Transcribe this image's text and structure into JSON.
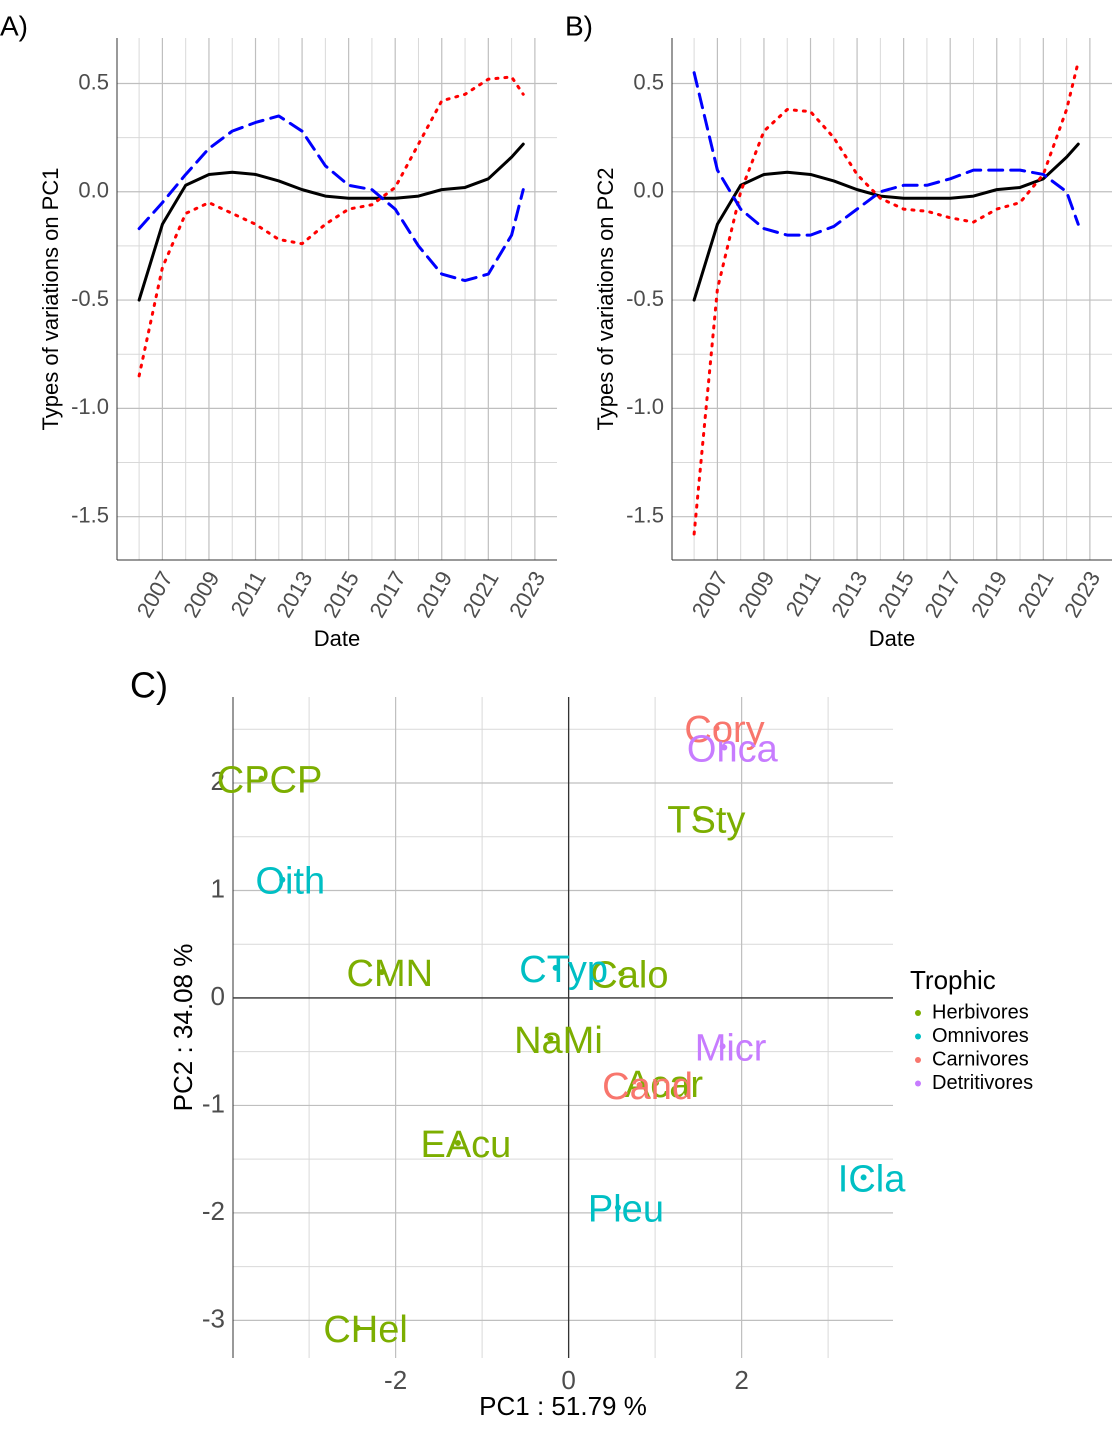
{
  "chart_data": [
    {
      "type": "line",
      "panel": "A)",
      "xlabel": "Date",
      "ylabel": "Types of variations on PC1",
      "x": [
        2006,
        2007,
        2008,
        2009,
        2010,
        2011,
        2012,
        2013,
        2014,
        2015,
        2016,
        2017,
        2018,
        2019,
        2020,
        2021,
        2022,
        2022.5
      ],
      "series": [
        {
          "color": "#000000",
          "dash": "solid",
          "values": [
            -0.5,
            -0.15,
            0.03,
            0.08,
            0.09,
            0.08,
            0.05,
            0.01,
            -0.02,
            -0.03,
            -0.03,
            -0.03,
            -0.02,
            0.01,
            0.02,
            0.06,
            0.16,
            0.22
          ]
        },
        {
          "color": "#ff0000",
          "dash": "dotted",
          "values": [
            -0.85,
            -0.35,
            -0.1,
            -0.05,
            -0.1,
            -0.15,
            -0.22,
            -0.24,
            -0.15,
            -0.08,
            -0.06,
            0.02,
            0.22,
            0.42,
            0.45,
            0.52,
            0.53,
            0.45
          ]
        },
        {
          "color": "#0000ff",
          "dash": "dashed",
          "values": [
            -0.17,
            -0.05,
            0.08,
            0.2,
            0.28,
            0.32,
            0.35,
            0.28,
            0.12,
            0.03,
            0.01,
            -0.08,
            -0.25,
            -0.38,
            -0.41,
            -0.38,
            -0.2,
            0.01
          ]
        }
      ],
      "xlim": [
        2005.05,
        2023.95
      ],
      "xticks": [
        2007,
        2009,
        2011,
        2013,
        2015,
        2017,
        2019,
        2021,
        2023
      ],
      "ylim": [
        -1.7,
        0.71
      ],
      "yticks": [
        -1.5,
        {
          "value": -1,
          "label": "-1.0"
        },
        -0.5,
        {
          "value": 0,
          "label": "0.0"
        },
        0.5
      ],
      "grid": true
    },
    {
      "type": "line",
      "panel": "B)",
      "xlabel": "Date",
      "ylabel": "Types of variations on PC2",
      "x": [
        2006,
        2007,
        2008,
        2009,
        2010,
        2011,
        2012,
        2013,
        2014,
        2015,
        2016,
        2017,
        2018,
        2019,
        2020,
        2021,
        2022,
        2022.5
      ],
      "series": [
        {
          "color": "#000000",
          "dash": "solid",
          "values": [
            -0.5,
            -0.15,
            0.03,
            0.08,
            0.09,
            0.08,
            0.05,
            0.01,
            -0.02,
            -0.03,
            -0.03,
            -0.03,
            -0.02,
            0.01,
            0.02,
            0.06,
            0.16,
            0.22
          ]
        },
        {
          "color": "#ff0000",
          "dash": "dotted",
          "values": [
            -1.58,
            -0.45,
            0.0,
            0.28,
            0.38,
            0.37,
            0.25,
            0.08,
            -0.03,
            -0.08,
            -0.09,
            -0.12,
            -0.14,
            -0.08,
            -0.05,
            0.08,
            0.38,
            0.6
          ]
        },
        {
          "color": "#0000ff",
          "dash": "dashed",
          "values": [
            0.55,
            0.1,
            -0.08,
            -0.17,
            -0.2,
            -0.2,
            -0.16,
            -0.08,
            0.0,
            0.03,
            0.03,
            0.06,
            0.1,
            0.1,
            0.1,
            0.08,
            0.0,
            -0.15
          ]
        }
      ],
      "xlim": [
        2005.05,
        2023.95
      ],
      "xticks": [
        2007,
        2009,
        2011,
        2013,
        2015,
        2017,
        2019,
        2021,
        2023
      ],
      "ylim": [
        -1.7,
        0.71
      ],
      "yticks": [
        -1.5,
        {
          "value": -1,
          "label": "-1.0"
        },
        -0.5,
        {
          "value": 0,
          "label": "0.0"
        },
        0.5
      ],
      "grid": true
    },
    {
      "type": "scatter",
      "panel": "C)",
      "xlabel": "PC1 : 51.79 %",
      "ylabel": "PC2 : 34.08 %",
      "legend_title": "Trophic",
      "legend": "right",
      "series": [
        {
          "name": "Herbivores",
          "color": "#7cae00",
          "labels": [
            "CPCP",
            "CMN",
            "Calo",
            "NaMi",
            "Acar",
            "EAcu",
            "CHel",
            "TSty"
          ],
          "x": [
            -3.55,
            -2.16,
            0.61,
            -0.21,
            1.01,
            -1.28,
            -2.44,
            1.5
          ],
          "values": [
            2.04,
            0.24,
            0.23,
            -0.38,
            -0.79,
            -1.35,
            -3.07,
            1.67
          ]
        },
        {
          "name": "Omnivores",
          "color": "#00bfc4",
          "labels": [
            "Oith",
            "CTyp",
            "Pleu",
            "ICla"
          ],
          "x": [
            -3.31,
            -0.15,
            0.57,
            3.41
          ],
          "values": [
            1.1,
            0.28,
            -1.95,
            -1.67
          ]
        },
        {
          "name": "Carnivores",
          "color": "#f8766d",
          "labels": [
            "Cory",
            "Cand"
          ],
          "x": [
            1.71,
            0.82
          ],
          "values": [
            2.51,
            -0.81
          ]
        },
        {
          "name": "Detritivores",
          "color": "#c77cff",
          "labels": [
            "Onca",
            "Micr"
          ],
          "x": [
            1.8,
            1.78
          ],
          "values": [
            2.33,
            -0.45
          ]
        }
      ],
      "xlim": [
        -3.88,
        3.75
      ],
      "xticks": [
        -2,
        0,
        2
      ],
      "ylim": [
        -3.35,
        2.8
      ],
      "yticks": [
        -3,
        -2,
        -1,
        0,
        1,
        2
      ],
      "grid": true,
      "hline": 0,
      "vline": 0
    }
  ]
}
